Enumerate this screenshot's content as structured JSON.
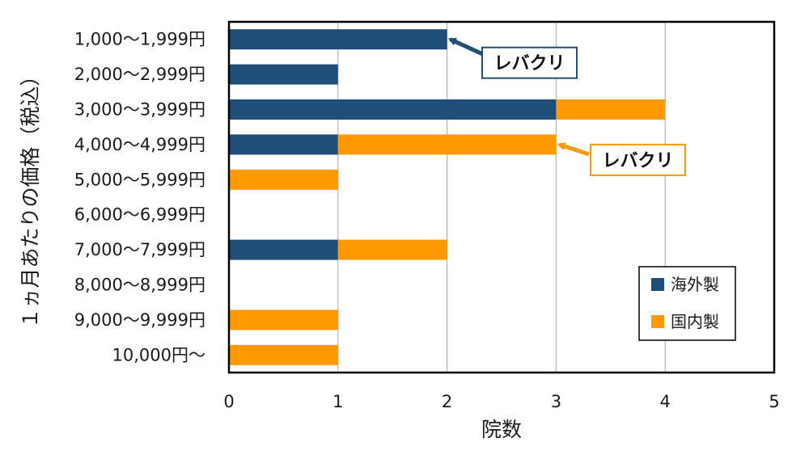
{
  "chart_data": {
    "type": "bar",
    "orientation": "horizontal",
    "stacked": true,
    "categories": [
      "1,000〜1,999円",
      "2,000〜2,999円",
      "3,000〜3,999円",
      "4,000〜4,999円",
      "5,000〜5,999円",
      "6,000〜6,999円",
      "7,000〜7,999円",
      "8,000〜8,999円",
      "9,000〜9,999円",
      "10,000円〜"
    ],
    "series": [
      {
        "name": "海外製",
        "color": "#1f4e79",
        "values": [
          2,
          1,
          3,
          1,
          0,
          0,
          1,
          0,
          0,
          0
        ]
      },
      {
        "name": "国内製",
        "color": "#ff9900",
        "values": [
          0,
          0,
          1,
          2,
          1,
          0,
          1,
          0,
          1,
          1
        ]
      }
    ],
    "xlabel": "院数",
    "ylabel": "１ヵ月あたりの価格（税込）",
    "xlim": [
      0,
      5
    ],
    "xticks": [
      "0",
      "1",
      "2",
      "3",
      "4",
      "5"
    ],
    "grid": "vertical",
    "legend": "bottom-right",
    "annotations": [
      {
        "text": "レバクリ",
        "category": "1,000〜1,999円",
        "series": "海外製",
        "border_color": "#1f4e79"
      },
      {
        "text": "レバクリ",
        "category": "4,000〜4,999円",
        "series": "国内製",
        "border_color": "#ff9900"
      }
    ]
  }
}
